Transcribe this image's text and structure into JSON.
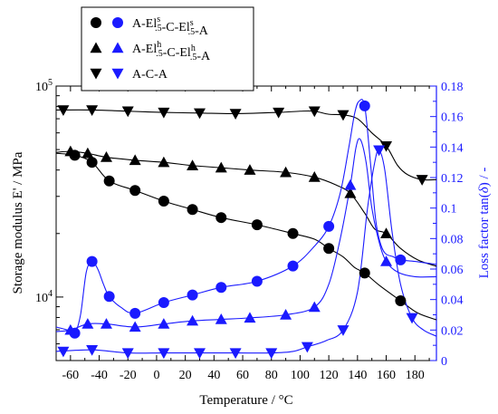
{
  "chart_data": {
    "type": "scatter",
    "title": "",
    "xlabel": "Temperature / °C",
    "ylabel_left": "Storage modulus E' / MPa",
    "ylabel_right": "Loss factor tan(δ) / -",
    "ylabel_left_parts": {
      "pre": "Storage modulus E",
      "prime": "'",
      "post": " / MPa"
    },
    "ylabel_right_parts": {
      "pre": "Loss factor tan(",
      "delta": "δ",
      "post": ") / -"
    },
    "xlim": [
      -70,
      195
    ],
    "xticks": [
      -60,
      -40,
      -20,
      0,
      20,
      40,
      60,
      80,
      100,
      120,
      140,
      160,
      180
    ],
    "ylim_left": [
      5000,
      100000
    ],
    "yscale_left": "log",
    "yticks_left": [
      {
        "value": 10000,
        "base": "10",
        "exp": "4"
      },
      {
        "value": 100000,
        "base": "10",
        "exp": "5"
      }
    ],
    "ylim_right": [
      0,
      0.18
    ],
    "yticks_right": [
      "0",
      "0.02",
      "0.04",
      "0.06",
      "0.08",
      "0.1",
      "0.12",
      "0.14",
      "0.16",
      "0.18"
    ],
    "left_color": "#000000",
    "right_color": "#1a1aff",
    "legend_placement": "top-left",
    "legend": [
      {
        "marker": "circle",
        "parts": [
          {
            "t": "A-El"
          },
          {
            "t": "s",
            "sup": true
          },
          {
            "t": ".5",
            "sub": true
          },
          {
            "t": "-C-El"
          },
          {
            "t": "s",
            "sup": true
          },
          {
            "t": ".5",
            "sub": true
          },
          {
            "t": "-A"
          }
        ]
      },
      {
        "marker": "triangle-up",
        "parts": [
          {
            "t": "A-El"
          },
          {
            "t": "h",
            "sup": true
          },
          {
            "t": ".5",
            "sub": true
          },
          {
            "t": "-C-El"
          },
          {
            "t": "h",
            "sup": true
          },
          {
            "t": ".5",
            "sub": true
          },
          {
            "t": "-A"
          }
        ]
      },
      {
        "marker": "triangle-down",
        "parts": [
          {
            "t": "A-C-A"
          }
        ]
      }
    ],
    "series": [
      {
        "axis": "left",
        "marker": "circle",
        "color": "#000000",
        "points": [
          [
            -57,
            47000
          ],
          [
            -45,
            43500
          ],
          [
            -33,
            35500
          ],
          [
            -15,
            32000
          ],
          [
            5,
            28500
          ],
          [
            25,
            26000
          ],
          [
            45,
            23800
          ],
          [
            70,
            22000
          ],
          [
            95,
            20000
          ],
          [
            120,
            17000
          ],
          [
            145,
            13000
          ],
          [
            170,
            9600
          ]
        ],
        "curve": [
          [
            -70,
            48000
          ],
          [
            -57,
            47000
          ],
          [
            -45,
            43500
          ],
          [
            -33,
            35500
          ],
          [
            -15,
            32000
          ],
          [
            5,
            28500
          ],
          [
            25,
            26000
          ],
          [
            45,
            23800
          ],
          [
            70,
            22000
          ],
          [
            95,
            20000
          ],
          [
            110,
            18800
          ],
          [
            120,
            17000
          ],
          [
            130,
            15500
          ],
          [
            138,
            13800
          ],
          [
            145,
            13000
          ],
          [
            155,
            11400
          ],
          [
            170,
            9600
          ],
          [
            182,
            8400
          ],
          [
            195,
            7800
          ]
        ]
      },
      {
        "axis": "left",
        "marker": "triangle-up",
        "color": "#000000",
        "points": [
          [
            -60,
            49000
          ],
          [
            -48,
            48000
          ],
          [
            -35,
            46000
          ],
          [
            -15,
            44500
          ],
          [
            5,
            43500
          ],
          [
            25,
            42000
          ],
          [
            45,
            41000
          ],
          [
            65,
            40000
          ],
          [
            90,
            39000
          ],
          [
            110,
            37000
          ],
          [
            135,
            31000
          ],
          [
            160,
            20000
          ]
        ],
        "curve": [
          [
            -70,
            48500
          ],
          [
            -60,
            49000
          ],
          [
            -48,
            48000
          ],
          [
            -35,
            46000
          ],
          [
            -15,
            44500
          ],
          [
            5,
            43500
          ],
          [
            25,
            42000
          ],
          [
            45,
            41000
          ],
          [
            65,
            40000
          ],
          [
            90,
            39000
          ],
          [
            110,
            37000
          ],
          [
            125,
            34000
          ],
          [
            135,
            31000
          ],
          [
            145,
            25000
          ],
          [
            152,
            21000
          ],
          [
            160,
            20000
          ],
          [
            170,
            17000
          ],
          [
            182,
            15000
          ],
          [
            195,
            14000
          ]
        ]
      },
      {
        "axis": "left",
        "marker": "triangle-down",
        "color": "#000000",
        "points": [
          [
            -65,
            77000
          ],
          [
            -45,
            77000
          ],
          [
            -20,
            76000
          ],
          [
            5,
            75000
          ],
          [
            30,
            74500
          ],
          [
            55,
            74000
          ],
          [
            85,
            75000
          ],
          [
            110,
            76000
          ],
          [
            130,
            73000
          ],
          [
            160,
            52000
          ],
          [
            185,
            36000
          ]
        ],
        "curve": [
          [
            -70,
            77000
          ],
          [
            -45,
            77000
          ],
          [
            -20,
            76000
          ],
          [
            5,
            75000
          ],
          [
            30,
            74500
          ],
          [
            55,
            74000
          ],
          [
            85,
            75000
          ],
          [
            100,
            76000
          ],
          [
            110,
            76000
          ],
          [
            120,
            73500
          ],
          [
            130,
            73000
          ],
          [
            140,
            70000
          ],
          [
            150,
            60000
          ],
          [
            160,
            52000
          ],
          [
            168,
            42000
          ],
          [
            175,
            38000
          ],
          [
            185,
            36000
          ],
          [
            195,
            36000
          ]
        ]
      },
      {
        "axis": "right",
        "marker": "circle",
        "color": "#1a1aff",
        "points": [
          [
            -57,
            0.018
          ],
          [
            -45,
            0.065
          ],
          [
            -33,
            0.042
          ],
          [
            -15,
            0.031
          ],
          [
            5,
            0.038
          ],
          [
            25,
            0.043
          ],
          [
            45,
            0.048
          ],
          [
            70,
            0.052
          ],
          [
            95,
            0.062
          ],
          [
            120,
            0.088
          ],
          [
            145,
            0.167
          ],
          [
            170,
            0.066
          ]
        ],
        "curve": [
          [
            -70,
            0.022
          ],
          [
            -62,
            0.02
          ],
          [
            -57,
            0.018
          ],
          [
            -53,
            0.03
          ],
          [
            -49,
            0.058
          ],
          [
            -45,
            0.065
          ],
          [
            -41,
            0.06
          ],
          [
            -37,
            0.05
          ],
          [
            -33,
            0.042
          ],
          [
            -25,
            0.035
          ],
          [
            -15,
            0.031
          ],
          [
            5,
            0.038
          ],
          [
            25,
            0.043
          ],
          [
            45,
            0.048
          ],
          [
            70,
            0.052
          ],
          [
            95,
            0.062
          ],
          [
            110,
            0.075
          ],
          [
            120,
            0.088
          ],
          [
            128,
            0.11
          ],
          [
            134,
            0.14
          ],
          [
            138,
            0.162
          ],
          [
            141,
            0.17
          ],
          [
            145,
            0.167
          ],
          [
            149,
            0.13
          ],
          [
            153,
            0.09
          ],
          [
            158,
            0.072
          ],
          [
            165,
            0.068
          ],
          [
            170,
            0.066
          ],
          [
            180,
            0.065
          ],
          [
            195,
            0.063
          ]
        ]
      },
      {
        "axis": "right",
        "marker": "triangle-up",
        "color": "#1a1aff",
        "points": [
          [
            -60,
            0.02
          ],
          [
            -48,
            0.024
          ],
          [
            -35,
            0.024
          ],
          [
            -15,
            0.022
          ],
          [
            5,
            0.024
          ],
          [
            25,
            0.026
          ],
          [
            45,
            0.027
          ],
          [
            65,
            0.028
          ],
          [
            90,
            0.03
          ],
          [
            110,
            0.035
          ],
          [
            135,
            0.115
          ],
          [
            160,
            0.065
          ]
        ],
        "curve": [
          [
            -70,
            0.019
          ],
          [
            -60,
            0.02
          ],
          [
            -48,
            0.024
          ],
          [
            -35,
            0.024
          ],
          [
            -15,
            0.022
          ],
          [
            5,
            0.024
          ],
          [
            25,
            0.026
          ],
          [
            45,
            0.027
          ],
          [
            65,
            0.028
          ],
          [
            90,
            0.03
          ],
          [
            110,
            0.035
          ],
          [
            120,
            0.05
          ],
          [
            128,
            0.08
          ],
          [
            135,
            0.115
          ],
          [
            139,
            0.14
          ],
          [
            142,
            0.145
          ],
          [
            146,
            0.13
          ],
          [
            150,
            0.1
          ],
          [
            155,
            0.078
          ],
          [
            160,
            0.065
          ],
          [
            168,
            0.058
          ],
          [
            180,
            0.055
          ],
          [
            195,
            0.055
          ]
        ]
      },
      {
        "axis": "right",
        "marker": "triangle-down",
        "color": "#1a1aff",
        "points": [
          [
            -65,
            0.006
          ],
          [
            -45,
            0.007
          ],
          [
            -20,
            0.005
          ],
          [
            5,
            0.005
          ],
          [
            30,
            0.005
          ],
          [
            55,
            0.005
          ],
          [
            80,
            0.005
          ],
          [
            105,
            0.009
          ],
          [
            130,
            0.02
          ],
          [
            155,
            0.138
          ],
          [
            178,
            0.028
          ]
        ],
        "curve": [
          [
            -70,
            0.006
          ],
          [
            -45,
            0.007
          ],
          [
            -20,
            0.005
          ],
          [
            5,
            0.005
          ],
          [
            30,
            0.005
          ],
          [
            55,
            0.005
          ],
          [
            80,
            0.005
          ],
          [
            95,
            0.006
          ],
          [
            105,
            0.009
          ],
          [
            118,
            0.013
          ],
          [
            130,
            0.02
          ],
          [
            140,
            0.045
          ],
          [
            147,
            0.1
          ],
          [
            152,
            0.13
          ],
          [
            155,
            0.138
          ],
          [
            159,
            0.125
          ],
          [
            164,
            0.085
          ],
          [
            170,
            0.05
          ],
          [
            178,
            0.028
          ],
          [
            186,
            0.02
          ],
          [
            195,
            0.016
          ]
        ]
      }
    ]
  }
}
